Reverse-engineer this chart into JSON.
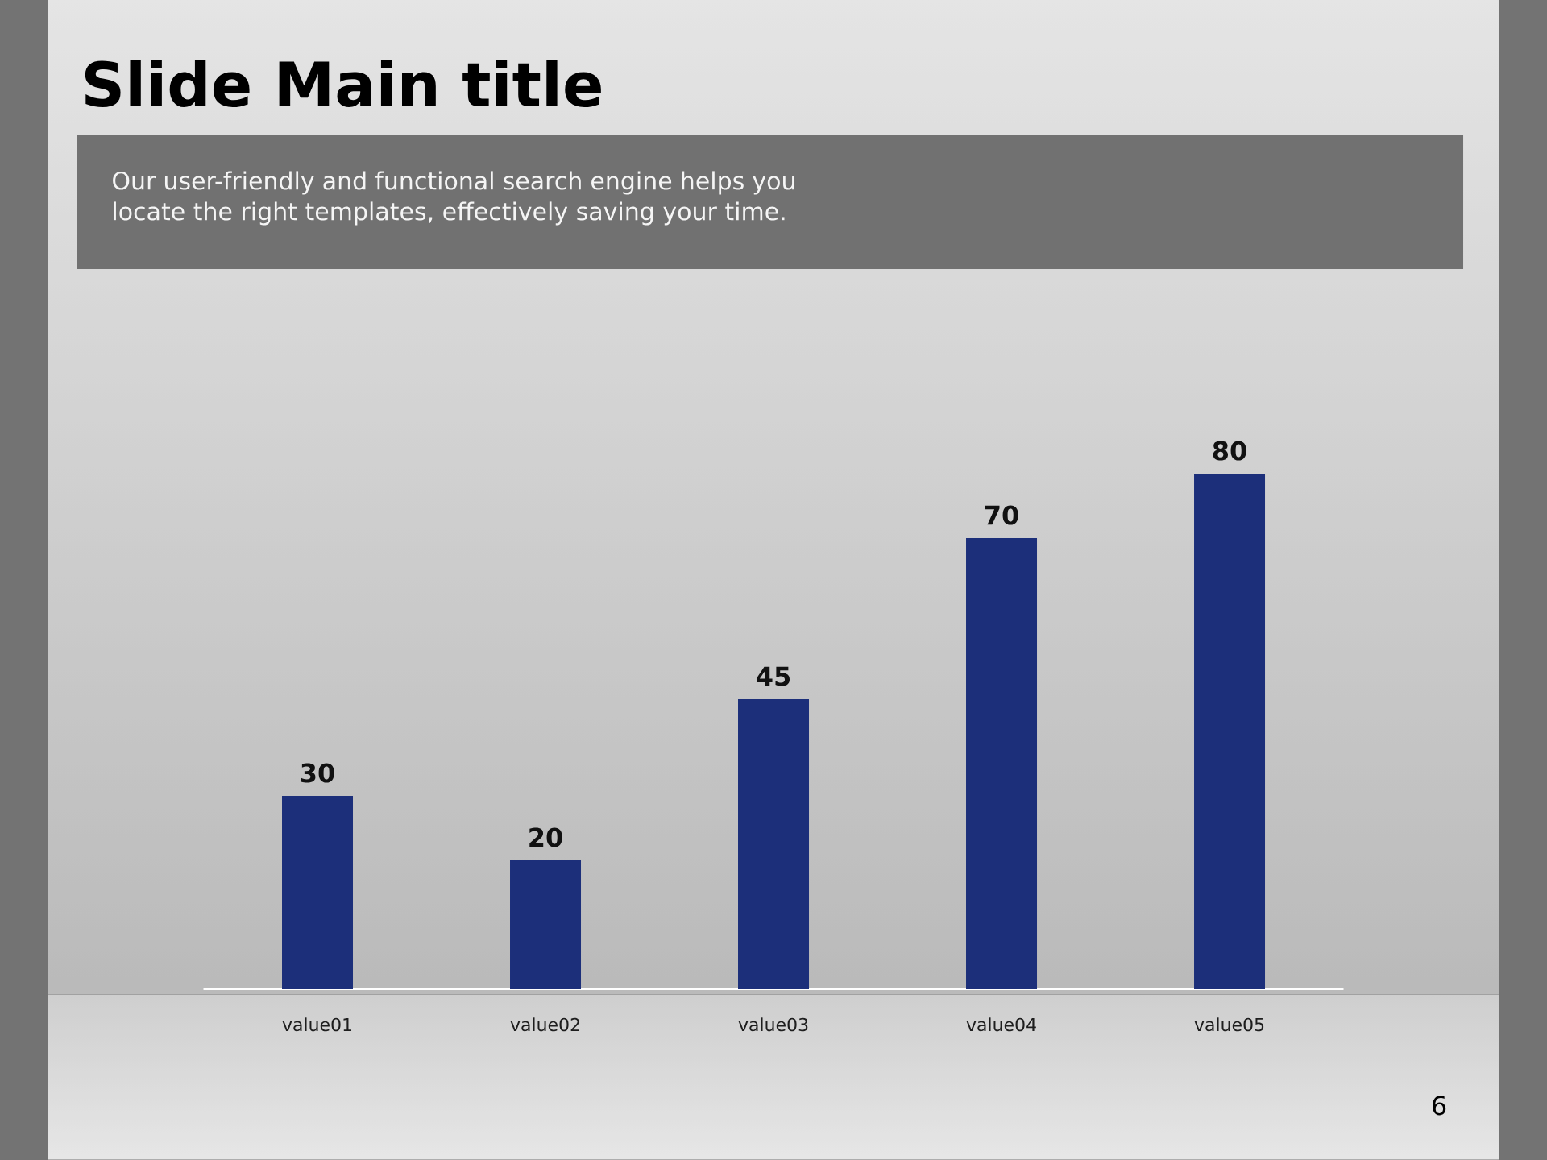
{
  "chart_data": {
    "type": "bar",
    "title": "Slide Main title",
    "subtitle": "Our user-friendly and functional search engine helps you locate the right templates, effectively saving your time.",
    "categories": [
      "value01",
      "value02",
      "value03",
      "value04",
      "value05"
    ],
    "values": [
      30,
      20,
      45,
      70,
      80
    ],
    "color": "#1c2f7a",
    "tick_labels": "x",
    "data_labels": true,
    "annotations": [
      "6"
    ]
  }
}
